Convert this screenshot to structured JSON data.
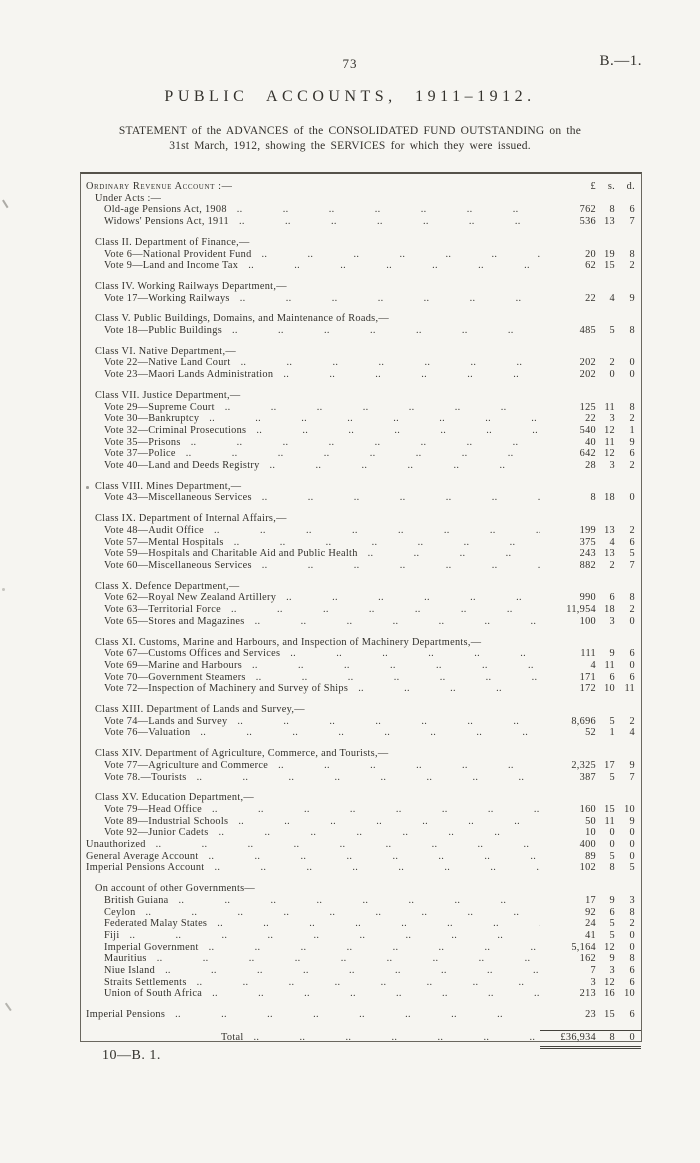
{
  "page": {
    "page_number": "73",
    "doc_ref": "B.—1.",
    "title": "PUBLIC ACCOUNTS, 1911–1912.",
    "statement_line1": "STATEMENT of the ADVANCES of the CONSOLIDATED FUND OUTSTANDING on the",
    "statement_line2": "31st March, 1912, showing the SERVICES for which they were issued.",
    "footer": "10—B. 1."
  },
  "table": {
    "columns": {
      "pounds": "£",
      "shillings": "s.",
      "pence": "d."
    },
    "sections": [
      {
        "rows": [
          {
            "label": "Ordinary Revenue Account :—",
            "indent": 0,
            "sc": true,
            "colheader": true
          },
          {
            "label": "Under Acts :—",
            "indent": 1
          },
          {
            "label": "Old-age Pensions Act, 1908",
            "indent": 2,
            "dots": true,
            "pounds": "762",
            "shillings": "8",
            "pence": "6"
          },
          {
            "label": "Widows' Pensions Act, 1911",
            "indent": 2,
            "dots": true,
            "pounds": "536",
            "shillings": "13",
            "pence": "7"
          }
        ]
      },
      {
        "rows": [
          {
            "label": "Class II. Department of Finance,—",
            "indent": 1
          },
          {
            "label": "Vote 6—National Provident Fund",
            "indent": 2,
            "dots": true,
            "pounds": "20",
            "shillings": "19",
            "pence": "8"
          },
          {
            "label": "Vote 9—Land and Income Tax",
            "indent": 2,
            "dots": true,
            "pounds": "62",
            "shillings": "15",
            "pence": "2"
          }
        ]
      },
      {
        "rows": [
          {
            "label": "Class IV. Working Railways Department,—",
            "indent": 1
          },
          {
            "label": "Vote 17—Working Railways",
            "indent": 2,
            "dots": true,
            "pounds": "22",
            "shillings": "4",
            "pence": "9"
          }
        ]
      },
      {
        "rows": [
          {
            "label": "Class V. Public Buildings, Domains, and Maintenance of Roads,—",
            "indent": 1
          },
          {
            "label": "Vote 18—Public Buildings",
            "indent": 2,
            "dots": true,
            "pounds": "485",
            "shillings": "5",
            "pence": "8"
          }
        ]
      },
      {
        "rows": [
          {
            "label": "Class VI. Native Department,—",
            "indent": 1
          },
          {
            "label": "Vote 22—Native Land Court",
            "indent": 2,
            "dots": true,
            "pounds": "202",
            "shillings": "2",
            "pence": "0"
          },
          {
            "label": "Vote 23—Maori Lands Administration",
            "indent": 2,
            "dots": true,
            "pounds": "202",
            "shillings": "0",
            "pence": "0"
          }
        ]
      },
      {
        "rows": [
          {
            "label": "Class VII. Justice Department,—",
            "indent": 1
          },
          {
            "label": "Vote 29—Supreme Court",
            "indent": 2,
            "dots": true,
            "pounds": "125",
            "shillings": "11",
            "pence": "8"
          },
          {
            "label": "Vote 30—Bankruptcy",
            "indent": 2,
            "dots": true,
            "pounds": "22",
            "shillings": "3",
            "pence": "2"
          },
          {
            "label": "Vote 32—Criminal Prosecutions",
            "indent": 2,
            "dots": true,
            "pounds": "540",
            "shillings": "12",
            "pence": "1"
          },
          {
            "label": "Vote 35—Prisons",
            "indent": 2,
            "dots": true,
            "pounds": "40",
            "shillings": "11",
            "pence": "9"
          },
          {
            "label": "Vote 37—Police",
            "indent": 2,
            "dots": true,
            "pounds": "642",
            "shillings": "12",
            "pence": "6"
          },
          {
            "label": "Vote 40—Land and Deeds Registry",
            "indent": 2,
            "dots": true,
            "pounds": "28",
            "shillings": "3",
            "pence": "2"
          }
        ]
      },
      {
        "rows": [
          {
            "label": "Class VIII. Mines Department,—",
            "indent": 1
          },
          {
            "label": "Vote 43—Miscellaneous Services",
            "indent": 2,
            "dots": true,
            "pounds": "8",
            "shillings": "18",
            "pence": "0"
          }
        ]
      },
      {
        "rows": [
          {
            "label": "Class IX. Department of Internal Affairs,—",
            "indent": 1
          },
          {
            "label": "Vote 48—Audit Office",
            "indent": 2,
            "dots": true,
            "pounds": "199",
            "shillings": "13",
            "pence": "2"
          },
          {
            "label": "Vote 57—Mental Hospitals",
            "indent": 2,
            "dots": true,
            "pounds": "375",
            "shillings": "4",
            "pence": "6"
          },
          {
            "label": "Vote 59—Hospitals and Charitable Aid and Public Health",
            "indent": 2,
            "dots": true,
            "pounds": "243",
            "shillings": "13",
            "pence": "5"
          },
          {
            "label": "Vote 60—Miscellaneous Services",
            "indent": 2,
            "dots": true,
            "pounds": "882",
            "shillings": "2",
            "pence": "7"
          }
        ]
      },
      {
        "rows": [
          {
            "label": "Class X. Defence Department,—",
            "indent": 1
          },
          {
            "label": "Vote 62—Royal New Zealand Artillery",
            "indent": 2,
            "dots": true,
            "pounds": "990",
            "shillings": "6",
            "pence": "8"
          },
          {
            "label": "Vote 63—Territorial Force",
            "indent": 2,
            "dots": true,
            "pounds": "11,954",
            "shillings": "18",
            "pence": "2"
          },
          {
            "label": "Vote 65—Stores and Magazines",
            "indent": 2,
            "dots": true,
            "pounds": "100",
            "shillings": "3",
            "pence": "0"
          }
        ]
      },
      {
        "rows": [
          {
            "label": "Class XI. Customs, Marine and Harbours, and Inspection of Machinery Departments,—",
            "indent": 1
          },
          {
            "label": "Vote 67—Customs Offices and Services",
            "indent": 2,
            "dots": true,
            "pounds": "111",
            "shillings": "9",
            "pence": "6"
          },
          {
            "label": "Vote 69—Marine and Harbours",
            "indent": 2,
            "dots": true,
            "pounds": "4",
            "shillings": "11",
            "pence": "0"
          },
          {
            "label": "Vote 70—Government Steamers",
            "indent": 2,
            "dots": true,
            "pounds": "171",
            "shillings": "6",
            "pence": "6"
          },
          {
            "label": "Vote 72—Inspection of Machinery and Survey of Ships",
            "indent": 2,
            "dots": true,
            "pounds": "172",
            "shillings": "10",
            "pence": "11"
          }
        ]
      },
      {
        "rows": [
          {
            "label": "Class XIII. Department of Lands and Survey,—",
            "indent": 1
          },
          {
            "label": "Vote 74—Lands and Survey",
            "indent": 2,
            "dots": true,
            "pounds": "8,696",
            "shillings": "5",
            "pence": "2"
          },
          {
            "label": "Vote 76—Valuation",
            "indent": 2,
            "dots": true,
            "pounds": "52",
            "shillings": "1",
            "pence": "4"
          }
        ]
      },
      {
        "rows": [
          {
            "label": "Class XIV. Department of Agriculture, Commerce, and Tourists,—",
            "indent": 1
          },
          {
            "label": "Vote 77—Agriculture and Commerce",
            "indent": 2,
            "dots": true,
            "pounds": "2,325",
            "shillings": "17",
            "pence": "9"
          },
          {
            "label": "Vote 78.—Tourists",
            "indent": 2,
            "dots": true,
            "pounds": "387",
            "shillings": "5",
            "pence": "7"
          }
        ]
      },
      {
        "rows": [
          {
            "label": "Class XV. Education Department,—",
            "indent": 1
          },
          {
            "label": "Vote 79—Head Office",
            "indent": 2,
            "dots": true,
            "pounds": "160",
            "shillings": "15",
            "pence": "10"
          },
          {
            "label": "Vote 89—Industrial Schools",
            "indent": 2,
            "dots": true,
            "pounds": "50",
            "shillings": "11",
            "pence": "9"
          },
          {
            "label": "Vote 92—Junior Cadets",
            "indent": 2,
            "dots": true,
            "pounds": "10",
            "shillings": "0",
            "pence": "0"
          },
          {
            "label": "Unauthorized",
            "indent": 0,
            "dots": true,
            "pounds": "400",
            "shillings": "0",
            "pence": "0"
          },
          {
            "label": "General Average Account",
            "indent": 0,
            "dots": true,
            "pounds": "89",
            "shillings": "5",
            "pence": "0"
          },
          {
            "label": "Imperial Pensions Account",
            "indent": 0,
            "dots": true,
            "pounds": "102",
            "shillings": "8",
            "pence": "5"
          }
        ]
      },
      {
        "rows": [
          {
            "label": "On account of other Governments—",
            "indent": 1
          },
          {
            "label": "British Guiana",
            "indent": 2,
            "dots": true,
            "pounds": "17",
            "shillings": "9",
            "pence": "3"
          },
          {
            "label": "Ceylon",
            "indent": 2,
            "dots": true,
            "pounds": "92",
            "shillings": "6",
            "pence": "8"
          },
          {
            "label": "Federated Malay States",
            "indent": 2,
            "dots": true,
            "pounds": "24",
            "shillings": "5",
            "pence": "2"
          },
          {
            "label": "Fiji",
            "indent": 2,
            "dots": true,
            "pounds": "41",
            "shillings": "5",
            "pence": "0"
          },
          {
            "label": "Imperial Government",
            "indent": 2,
            "dots": true,
            "pounds": "5,164",
            "shillings": "12",
            "pence": "0"
          },
          {
            "label": "Mauritius",
            "indent": 2,
            "dots": true,
            "pounds": "162",
            "shillings": "9",
            "pence": "8"
          },
          {
            "label": "Niue Island",
            "indent": 2,
            "dots": true,
            "pounds": "7",
            "shillings": "3",
            "pence": "6"
          },
          {
            "label": "Straits Settlements",
            "indent": 2,
            "dots": true,
            "pounds": "3",
            "shillings": "12",
            "pence": "6"
          },
          {
            "label": "Union of South Africa",
            "indent": 2,
            "dots": true,
            "pounds": "213",
            "shillings": "16",
            "pence": "10"
          }
        ]
      },
      {
        "rows": [
          {
            "label": "Imperial Pensions",
            "indent": 0,
            "dots": true,
            "pounds": "23",
            "shillings": "15",
            "pence": "6"
          }
        ]
      }
    ],
    "total": {
      "label": "Total",
      "pounds": "£36,934",
      "shillings": "8",
      "pence": "0"
    }
  }
}
